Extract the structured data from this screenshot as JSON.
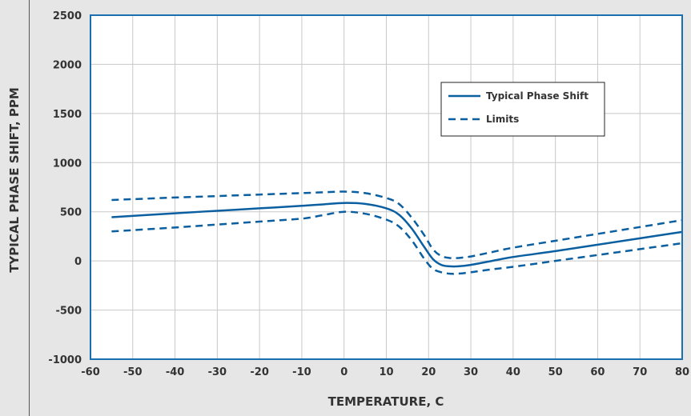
{
  "chart_data": {
    "type": "line",
    "xlabel": "TEMPERATURE, C",
    "ylabel": "TYPICAL PHASE SHIFT, PPM",
    "xlim": [
      -60,
      80
    ],
    "ylim": [
      -1000,
      2500
    ],
    "x_ticks": [
      "-60",
      "-50",
      "-40",
      "-30",
      "-20",
      "-10",
      "0",
      "10",
      "20",
      "30",
      "40",
      "50",
      "60",
      "70",
      "80"
    ],
    "y_ticks": [
      "2500",
      "2000",
      "1500",
      "1000",
      "500",
      "0",
      "-500",
      "-1000"
    ],
    "grid": true,
    "legend_position": "top-right",
    "colors": {
      "series": "#0a5fa0",
      "grid": "#c8c8c8",
      "frame": "#1a6fb0",
      "plot_bg": "#ffffff",
      "page_bg": "#e6e6e6"
    },
    "series": [
      {
        "name": "Typical Phase Shift",
        "style": "solid",
        "x": [
          -55,
          -40,
          -30,
          -20,
          -10,
          -5,
          0,
          5,
          10,
          13,
          16,
          19,
          21,
          23,
          25,
          27,
          30,
          35,
          40,
          50,
          60,
          70,
          80
        ],
        "y": [
          445,
          485,
          510,
          535,
          560,
          575,
          590,
          580,
          535,
          470,
          330,
          140,
          20,
          -40,
          -55,
          -55,
          -40,
          0,
          40,
          100,
          165,
          230,
          295
        ]
      },
      {
        "name": "Limits",
        "style": "dashed",
        "x": [
          -55,
          -40,
          -30,
          -20,
          -10,
          -5,
          0,
          5,
          10,
          13,
          16,
          19,
          21,
          23,
          25,
          27,
          30,
          35,
          40,
          50,
          60,
          70,
          80
        ],
        "y": [
          620,
          645,
          660,
          675,
          690,
          698,
          705,
          690,
          640,
          580,
          440,
          260,
          120,
          50,
          30,
          30,
          45,
          90,
          135,
          205,
          275,
          345,
          415
        ]
      },
      {
        "name": "",
        "style": "dashed",
        "x": [
          -55,
          -40,
          -30,
          -20,
          -10,
          -5,
          0,
          5,
          10,
          13,
          16,
          19,
          21,
          23,
          25,
          27,
          30,
          35,
          40,
          50,
          60,
          70,
          80
        ],
        "y": [
          300,
          340,
          370,
          400,
          430,
          465,
          500,
          480,
          420,
          350,
          210,
          20,
          -80,
          -115,
          -130,
          -130,
          -115,
          -85,
          -60,
          0,
          60,
          120,
          180
        ]
      }
    ]
  }
}
